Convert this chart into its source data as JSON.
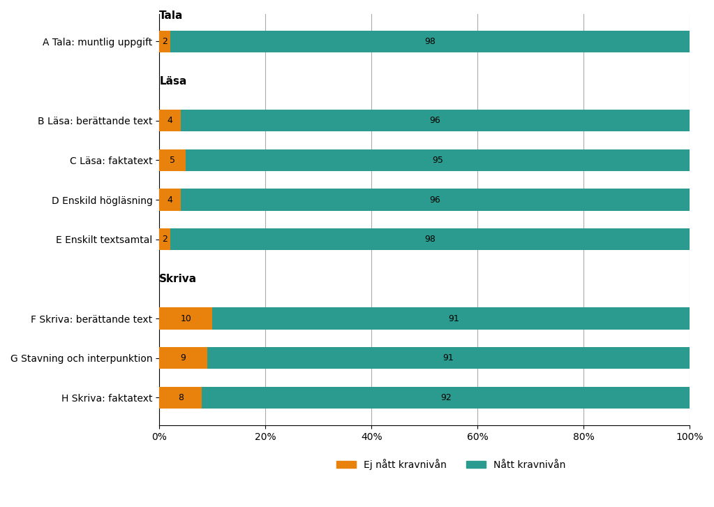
{
  "rows": [
    {
      "label": "A Tala: muntlig uppgift",
      "ej": 2,
      "natt": 98,
      "bar": true
    },
    {
      "label": "",
      "ej": 0,
      "natt": 0,
      "bar": false,
      "section": "Läsa"
    },
    {
      "label": "B Läsa: berättande text",
      "ej": 4,
      "natt": 96,
      "bar": true
    },
    {
      "label": "C Läsa: faktatext",
      "ej": 5,
      "natt": 95,
      "bar": true
    },
    {
      "label": "D Enskild högläsning",
      "ej": 4,
      "natt": 96,
      "bar": true
    },
    {
      "label": "E Enskilt textsamtal",
      "ej": 2,
      "natt": 98,
      "bar": true
    },
    {
      "label": "",
      "ej": 0,
      "natt": 0,
      "bar": false,
      "section": "Skriva"
    },
    {
      "label": "F Skriva: berättande text",
      "ej": 10,
      "natt": 91,
      "bar": true
    },
    {
      "label": "G Stavning och interpunktion",
      "ej": 9,
      "natt": 91,
      "bar": true
    },
    {
      "label": "H Skriva: faktatext",
      "ej": 8,
      "natt": 92,
      "bar": true
    }
  ],
  "tala_section_label": "Tala",
  "color_ej": "#E8820C",
  "color_natt": "#2A9B8E",
  "legend_ej": "Ej nått kravnivån",
  "legend_natt": "Nått kravnivån",
  "xlim": [
    0,
    100
  ],
  "xticks": [
    0,
    20,
    40,
    60,
    80,
    100
  ],
  "xticklabels": [
    "0%",
    "20%",
    "40%",
    "60%",
    "80%",
    "100%"
  ],
  "bar_height": 0.55,
  "figsize": [
    10.23,
    7.26
  ],
  "dpi": 100
}
